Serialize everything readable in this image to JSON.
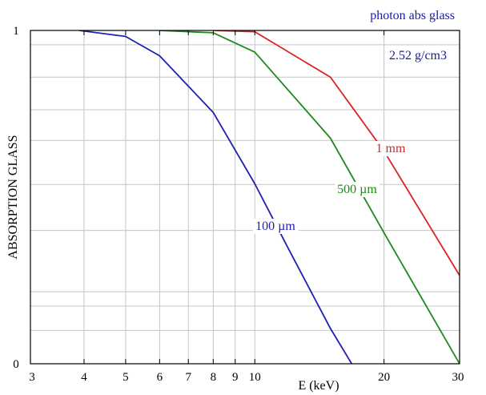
{
  "chart_data": {
    "type": "line",
    "title": "photon abs glass",
    "title_color": "#1a1aa6",
    "xlabel": "E (keV)",
    "ylabel": "ABSORPTION GLASS",
    "x_scale": "log",
    "xlim": [
      3,
      30
    ],
    "ylim": [
      0,
      1
    ],
    "x_ticks": [
      3,
      4,
      5,
      6,
      7,
      8,
      9,
      10,
      20,
      30
    ],
    "x_tick_labels": [
      "3",
      "4",
      "5",
      "6",
      "7",
      "8",
      "9",
      "10",
      "20",
      "30"
    ],
    "y_tick_labels": [
      "0",
      "1"
    ],
    "y_gridlines": [
      0.1,
      0.173,
      0.216,
      0.4,
      0.538,
      0.67,
      0.762,
      0.86,
      0.957
    ],
    "grid": true,
    "annotations": [
      {
        "text": "2.52 g/cm3",
        "color": "#1a1aa6"
      }
    ],
    "series": [
      {
        "name": "100 µm",
        "color": "#1f1fb4",
        "x": [
          3.9,
          5.0,
          6.0,
          8.0,
          10.0,
          12.0,
          15.0,
          17.0
        ],
        "y": [
          1.0,
          0.982,
          0.924,
          0.754,
          0.54,
          0.343,
          0.106,
          -0.01
        ]
      },
      {
        "name": "500 µm",
        "color": "#1d8a1d",
        "x": [
          6.0,
          8.0,
          10.0,
          15.0,
          20.0,
          30.0
        ],
        "y": [
          1.0,
          0.993,
          0.935,
          0.677,
          0.393,
          0.0
        ]
      },
      {
        "name": "1 mm",
        "color": "#dd2222",
        "x": [
          8.0,
          10.0,
          15.0,
          20.0,
          30.0
        ],
        "y": [
          1.0,
          0.996,
          0.86,
          0.638,
          0.265
        ]
      }
    ]
  }
}
